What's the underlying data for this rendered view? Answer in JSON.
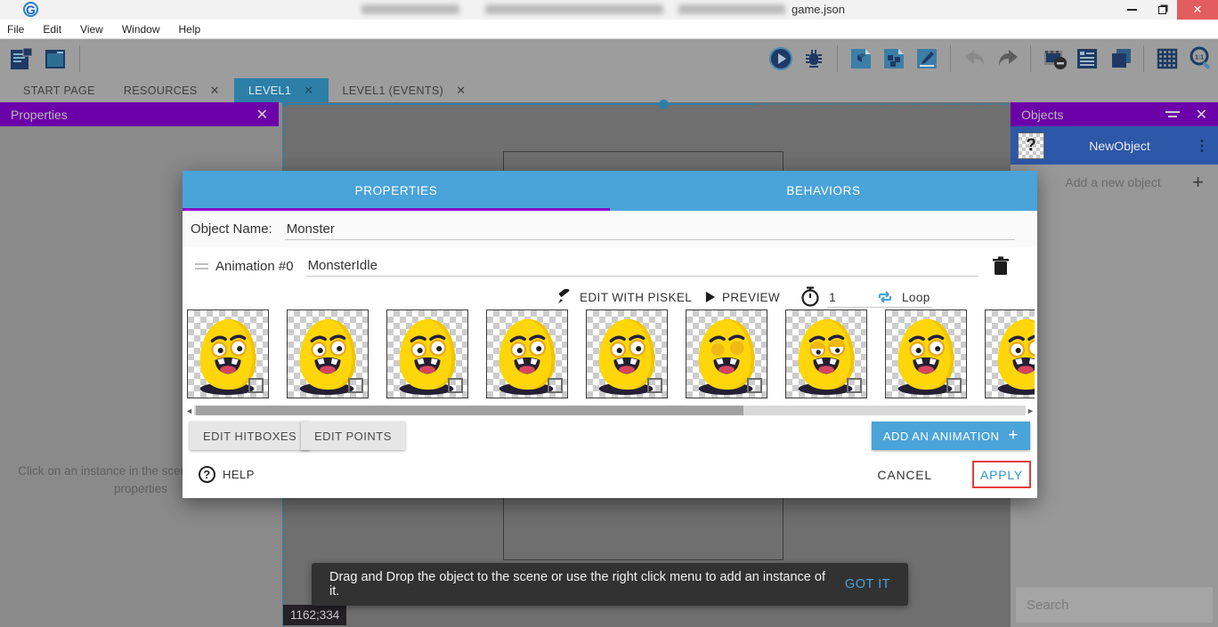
{
  "window": {
    "title": "game.json"
  },
  "menu": {
    "items": [
      "File",
      "Edit",
      "View",
      "Window",
      "Help"
    ]
  },
  "toolbar": {
    "left_icons": [
      "project-manager",
      "start-page"
    ],
    "right_icons": [
      "play",
      "debug",
      "export-file",
      "publish-file",
      "edit-scene-file",
      "undo",
      "redo",
      "toggle-mask",
      "objects-list",
      "layers",
      "grid",
      "zoom-1-1"
    ]
  },
  "tabs": [
    {
      "label": "START PAGE",
      "closable": false,
      "active": false
    },
    {
      "label": "RESOURCES",
      "closable": true,
      "active": false
    },
    {
      "label": "LEVEL1",
      "closable": true,
      "active": true
    },
    {
      "label": "LEVEL1 (EVENTS)",
      "closable": true,
      "active": false
    }
  ],
  "properties_panel": {
    "title": "Properties",
    "empty_text": "Click on an instance in the scene to display its properties"
  },
  "objects_panel": {
    "title": "Objects",
    "objects": [
      {
        "name": "NewObject",
        "thumb": "?"
      }
    ],
    "add_label": "Add a new object",
    "search_placeholder": "Search"
  },
  "dialog": {
    "tabs": [
      {
        "label": "PROPERTIES",
        "active": true
      },
      {
        "label": "BEHAVIORS",
        "active": false
      }
    ],
    "object_name_label": "Object Name:",
    "object_name": "Monster",
    "animation": {
      "label": "Animation #0",
      "name": "MonsterIdle"
    },
    "controls": {
      "edit_with_piskel": "EDIT WITH PISKEL",
      "preview": "PREVIEW",
      "time_between_frames": "1",
      "loop": "Loop"
    },
    "frames": [
      {
        "eyes": "open"
      },
      {
        "eyes": "open"
      },
      {
        "eyes": "open"
      },
      {
        "eyes": "open"
      },
      {
        "eyes": "open"
      },
      {
        "eyes": "closed"
      },
      {
        "eyes": "half"
      },
      {
        "eyes": "open"
      },
      {
        "eyes": "open"
      }
    ],
    "buttons": {
      "edit_hitboxes": "EDIT HITBOXES",
      "edit_points": "EDIT POINTS",
      "add_animation": "ADD AN ANIMATION",
      "help": "HELP",
      "cancel": "CANCEL",
      "apply": "APPLY"
    }
  },
  "toast": {
    "message": "Drag and Drop the object to the scene or use the right click menu to add an instance of it.",
    "action": "GOT IT"
  },
  "status": {
    "coordinates": "1162;334"
  },
  "icons": {
    "close": "✕",
    "plus": "+",
    "kebab": "⋮",
    "scroll_left": "◄",
    "scroll_right": "►",
    "question": "?",
    "logo": "G"
  },
  "colors": {
    "accent_blue": "#4aa3d9",
    "header_purple": "#6c00a8",
    "tab_indicator_purple": "#8a00c9",
    "selected_row_blue": "#2d57a8",
    "active_tab_blue": "#2d7fa8",
    "close_red": "#e25d5d",
    "annotation_red": "#e23b3b",
    "toast_dark": "#323232",
    "monster_yellow": "#ffd60a"
  }
}
